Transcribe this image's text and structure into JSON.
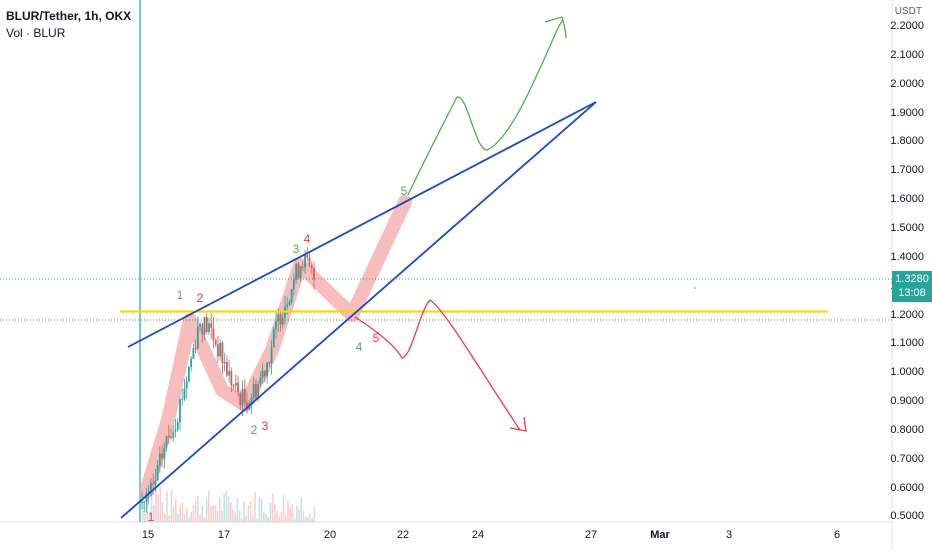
{
  "header": {
    "symbol_title": "BLUR/Tether, 1h, OKX",
    "volume_label": "Vol · BLUR"
  },
  "axis": {
    "unit": "USDT",
    "y_ticks": [
      "2.2000",
      "2.1000",
      "2.0000",
      "1.9000",
      "1.8000",
      "1.7000",
      "1.6000",
      "1.5000",
      "1.4000",
      "1.3000",
      "1.2000",
      "1.1000",
      "1.0000",
      "0.9000",
      "0.8000",
      "0.7000",
      "0.6000",
      "0.5000"
    ],
    "x_ticks": [
      {
        "label": "15",
        "bold": false
      },
      {
        "label": "17",
        "bold": false
      },
      {
        "label": "20",
        "bold": false
      },
      {
        "label": "22",
        "bold": false
      },
      {
        "label": "24",
        "bold": false
      },
      {
        "label": "27",
        "bold": false
      },
      {
        "label": "Mar",
        "bold": true
      },
      {
        "label": "3",
        "bold": false
      },
      {
        "label": "6",
        "bold": false
      }
    ]
  },
  "price_badge": {
    "price": "1.3280",
    "countdown": "13:08"
  },
  "chart_data": {
    "type": "candlestick",
    "title": "BLUR/Tether, 1h, OKX",
    "y_unit": "USDT",
    "ylim": [
      0.48,
      2.28
    ],
    "x_axis_labels": [
      "15",
      "17",
      "20",
      "22",
      "24",
      "27",
      "Mar",
      "3",
      "6"
    ],
    "last_price": 1.328,
    "price_path_approx": [
      0.55,
      0.6,
      0.75,
      0.85,
      1.0,
      1.18,
      1.15,
      1.05,
      0.95,
      0.9,
      0.95,
      1.05,
      1.2,
      1.3,
      1.4,
      1.33
    ],
    "horizontal_level": 1.2,
    "annotations": {
      "wave_labels_green": [
        "1",
        "2",
        "3",
        "4",
        "5"
      ],
      "wave_labels_red": [
        "1",
        "2",
        "3",
        "4",
        "5"
      ],
      "wedge": "rising wedge (two blue trendlines)",
      "projections": [
        "green bullish path",
        "red bearish path"
      ]
    },
    "colors": {
      "up": "#26a69a",
      "down": "#ef5350",
      "trendline": "#1848cc",
      "level": "#f5d90a",
      "highlight": "#f4a6a6"
    }
  }
}
